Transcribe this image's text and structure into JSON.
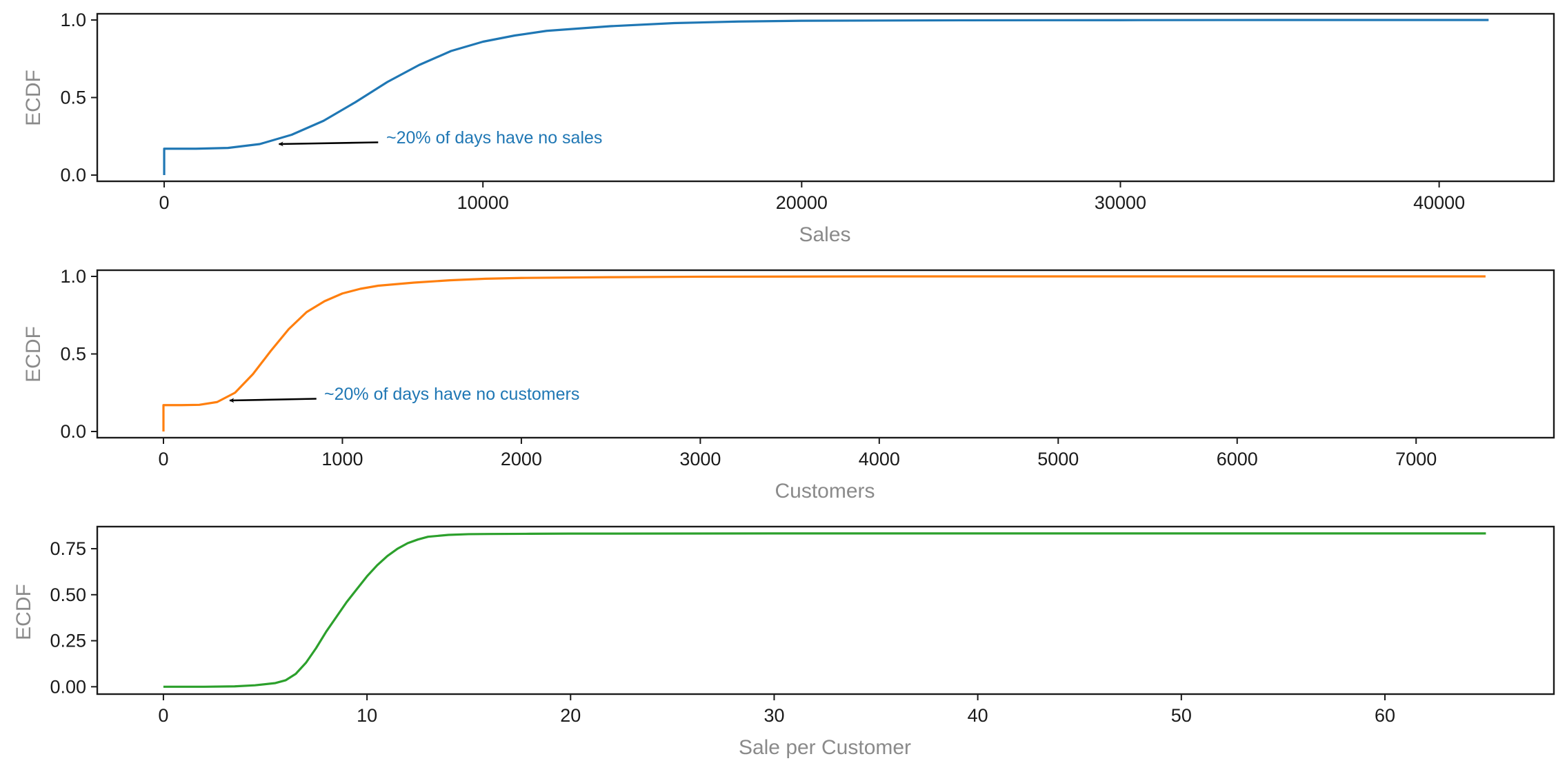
{
  "chart_data": [
    {
      "type": "line",
      "xlabel": "Sales",
      "ylabel": "ECDF",
      "xlim": [
        -2100,
        43600
      ],
      "ylim": [
        -0.04,
        1.04
      ],
      "xticks": [
        0,
        10000,
        20000,
        30000,
        40000
      ],
      "xtick_labels": [
        "0",
        "10000",
        "20000",
        "30000",
        "40000"
      ],
      "yticks": [
        0.0,
        0.5,
        1.0
      ],
      "ytick_labels": [
        "0.0",
        "0.5",
        "1.0"
      ],
      "color": "#1f77b4",
      "series": [
        {
          "x": [
            0,
            0,
            1000,
            2000,
            3000,
            4000,
            5000,
            6000,
            7000,
            8000,
            9000,
            10000,
            11000,
            12000,
            14000,
            16000,
            18000,
            20000,
            25000,
            30000,
            35000,
            41551
          ],
          "y": [
            0.0,
            0.17,
            0.17,
            0.175,
            0.2,
            0.26,
            0.35,
            0.47,
            0.6,
            0.71,
            0.8,
            0.86,
            0.9,
            0.93,
            0.96,
            0.98,
            0.99,
            0.995,
            0.998,
            0.999,
            1.0,
            1.0
          ]
        }
      ],
      "annotation": {
        "text": "~20% of days have no sales",
        "xy": [
          3600,
          0.2
        ],
        "xytext": [
          6800,
          0.22
        ],
        "color": "#1f77b4"
      }
    },
    {
      "type": "line",
      "xlabel": "Customers",
      "ylabel": "ECDF",
      "xlim": [
        -370,
        7770
      ],
      "ylim": [
        -0.04,
        1.04
      ],
      "xticks": [
        0,
        1000,
        2000,
        3000,
        4000,
        5000,
        6000,
        7000
      ],
      "xtick_labels": [
        "0",
        "1000",
        "2000",
        "3000",
        "4000",
        "5000",
        "6000",
        "7000"
      ],
      "yticks": [
        0.0,
        0.5,
        1.0
      ],
      "ytick_labels": [
        "0.0",
        "0.5",
        "1.0"
      ],
      "color": "#ff7f0e",
      "series": [
        {
          "x": [
            0,
            0,
            100,
            200,
            300,
            400,
            500,
            600,
            700,
            800,
            900,
            1000,
            1100,
            1200,
            1400,
            1600,
            1800,
            2000,
            2500,
            3000,
            4000,
            5000,
            6000,
            7388
          ],
          "y": [
            0.0,
            0.17,
            0.17,
            0.172,
            0.19,
            0.25,
            0.37,
            0.52,
            0.66,
            0.77,
            0.84,
            0.89,
            0.92,
            0.94,
            0.96,
            0.975,
            0.985,
            0.99,
            0.995,
            0.998,
            1.0,
            1.0,
            1.0,
            1.0
          ]
        }
      ],
      "annotation": {
        "text": "~20% of days have no customers",
        "xy": [
          370,
          0.2
        ],
        "xytext": [
          870,
          0.22
        ],
        "color": "#1f77b4"
      }
    },
    {
      "type": "line",
      "xlabel": "Sale per Customer",
      "ylabel": "ECDF",
      "xlim": [
        -3.25,
        68.3
      ],
      "ylim": [
        -0.04,
        0.87
      ],
      "xticks": [
        0,
        10,
        20,
        30,
        40,
        50,
        60
      ],
      "xtick_labels": [
        "0",
        "10",
        "20",
        "30",
        "40",
        "50",
        "60"
      ],
      "yticks": [
        0.0,
        0.25,
        0.5,
        0.75
      ],
      "ytick_labels": [
        "0.00",
        "0.25",
        "0.50",
        "0.75"
      ],
      "color": "#2ca02c",
      "series": [
        {
          "x": [
            0,
            2,
            3.5,
            4.5,
            5.5,
            6,
            6.5,
            7,
            7.5,
            8,
            8.5,
            9,
            9.5,
            10,
            10.5,
            11,
            11.5,
            12,
            12.5,
            13,
            14,
            15,
            16,
            18,
            20,
            30,
            40,
            50,
            60,
            64.96
          ],
          "y": [
            0.0,
            0.0,
            0.002,
            0.008,
            0.02,
            0.035,
            0.07,
            0.13,
            0.21,
            0.3,
            0.38,
            0.46,
            0.53,
            0.6,
            0.66,
            0.71,
            0.75,
            0.78,
            0.8,
            0.815,
            0.825,
            0.829,
            0.83,
            0.831,
            0.832,
            0.833,
            0.833,
            0.833,
            0.833,
            0.833
          ]
        }
      ]
    }
  ]
}
